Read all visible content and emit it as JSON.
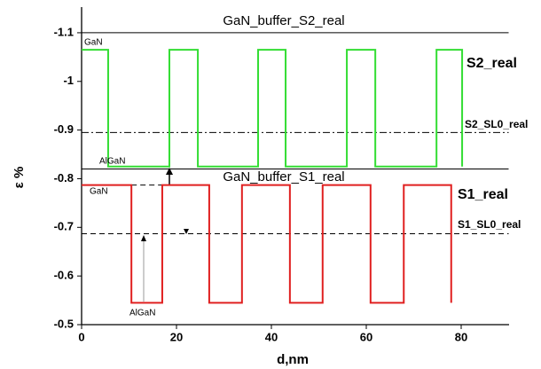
{
  "chart_data": {
    "type": "line",
    "x_label": "d,nm",
    "y_label": "ε %",
    "xlim": [
      0,
      90
    ],
    "xticks": [
      0,
      20,
      40,
      60,
      80
    ],
    "ylim": [
      -0.5,
      -1.15
    ],
    "yticks": [
      -1.1,
      -1.0,
      -0.9,
      -0.8,
      -0.7,
      -0.6,
      -0.5
    ],
    "series": [
      {
        "name": "S2_real",
        "color": "#33dd33",
        "x": [
          0,
          5.6,
          5.6,
          18.5,
          18.5,
          24.5,
          24.5,
          37.2,
          37.2,
          43,
          43,
          55.9,
          55.9,
          61.9,
          61.9,
          74.8,
          74.8,
          80.2,
          80.2
        ],
        "values": [
          -1.065,
          -1.065,
          -0.825,
          -0.825,
          -1.065,
          -1.065,
          -0.825,
          -0.825,
          -1.065,
          -1.065,
          -0.825,
          -0.825,
          -1.065,
          -1.065,
          -0.825,
          -0.825,
          -1.065,
          -1.065,
          -0.825
        ]
      },
      {
        "name": "S1_real",
        "color": "#e02020",
        "x": [
          0,
          10.5,
          10.5,
          17,
          17,
          26.9,
          26.9,
          33.8,
          33.8,
          43.9,
          43.9,
          50.8,
          50.8,
          60.9,
          60.9,
          67.9,
          67.9,
          77.9,
          77.9
        ],
        "values": [
          -0.787,
          -0.787,
          -0.545,
          -0.545,
          -0.787,
          -0.787,
          -0.545,
          -0.545,
          -0.787,
          -0.787,
          -0.545,
          -0.545,
          -0.787,
          -0.787,
          -0.545,
          -0.545,
          -0.787,
          -0.787,
          -0.545
        ]
      }
    ],
    "reference_lines": [
      {
        "label": "GaN_buffer_S2_real",
        "value": -1.1,
        "style": "solid"
      },
      {
        "label": "GaN_buffer_S1_real",
        "value": -0.82,
        "style": "solid"
      },
      {
        "label": "S2_SL0_real",
        "value": -0.895,
        "style": "dashdot"
      },
      {
        "label": "S1_SL0_real",
        "value": -0.687,
        "style": "dashed"
      },
      {
        "value": -0.787,
        "style": "dashed",
        "x": [
          10.5,
          26.9
        ]
      }
    ],
    "annotations": [
      "GaN",
      "AlGaN",
      "GaN",
      "AlGaN"
    ]
  }
}
